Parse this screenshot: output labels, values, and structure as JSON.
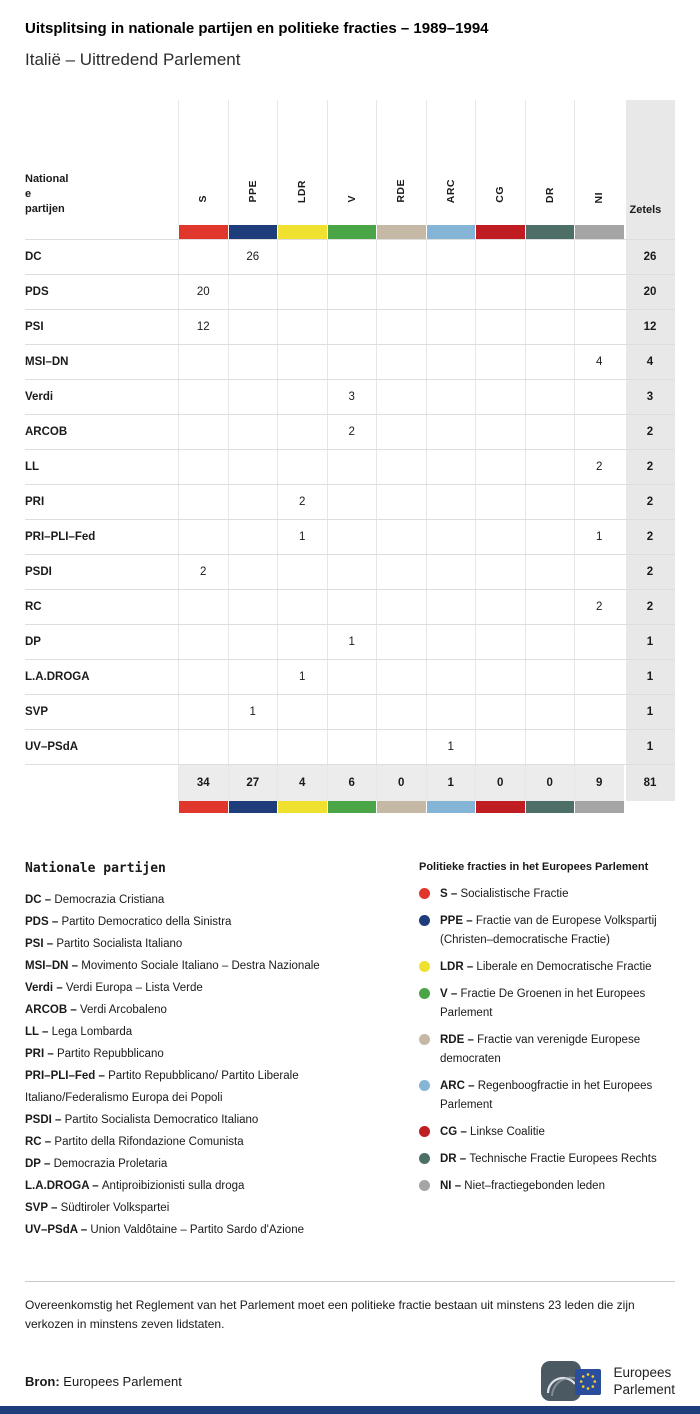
{
  "title": "Uitsplitsing in nationale partijen en politieke fracties – 1989–1994",
  "subtitle": "Italië – Uittredend Parlement",
  "table": {
    "corner_lines": [
      "National",
      "e",
      "partijen"
    ],
    "seats_header": "Zetels"
  },
  "chart_data": {
    "type": "table",
    "title": "Uitsplitsing in nationale partijen en politieke fracties – 1989–1994",
    "subtitle": "Italië – Uittredend Parlement",
    "groups": [
      {
        "code": "S",
        "color": "#e0362c"
      },
      {
        "code": "PPE",
        "color": "#1f3d7a"
      },
      {
        "code": "LDR",
        "color": "#f0e130"
      },
      {
        "code": "V",
        "color": "#4aa546"
      },
      {
        "code": "RDE",
        "color": "#c5b8a4"
      },
      {
        "code": "ARC",
        "color": "#84b5d6"
      },
      {
        "code": "CG",
        "color": "#c01d23"
      },
      {
        "code": "DR",
        "color": "#4e6f68"
      },
      {
        "code": "NI",
        "color": "#a5a5a5"
      }
    ],
    "rows": [
      {
        "party": "DC",
        "values": [
          0,
          26,
          0,
          0,
          0,
          0,
          0,
          0,
          0
        ],
        "total": 26
      },
      {
        "party": "PDS",
        "values": [
          20,
          0,
          0,
          0,
          0,
          0,
          0,
          0,
          0
        ],
        "total": 20
      },
      {
        "party": "PSI",
        "values": [
          12,
          0,
          0,
          0,
          0,
          0,
          0,
          0,
          0
        ],
        "total": 12
      },
      {
        "party": "MSI–DN",
        "values": [
          0,
          0,
          0,
          0,
          0,
          0,
          0,
          0,
          4
        ],
        "total": 4
      },
      {
        "party": "Verdi",
        "values": [
          0,
          0,
          0,
          3,
          0,
          0,
          0,
          0,
          0
        ],
        "total": 3
      },
      {
        "party": "ARCOB",
        "values": [
          0,
          0,
          0,
          2,
          0,
          0,
          0,
          0,
          0
        ],
        "total": 2
      },
      {
        "party": "LL",
        "values": [
          0,
          0,
          0,
          0,
          0,
          0,
          0,
          0,
          2
        ],
        "total": 2
      },
      {
        "party": "PRI",
        "values": [
          0,
          0,
          2,
          0,
          0,
          0,
          0,
          0,
          0
        ],
        "total": 2
      },
      {
        "party": "PRI–PLI–Fed",
        "values": [
          0,
          0,
          1,
          0,
          0,
          0,
          0,
          0,
          1
        ],
        "total": 2
      },
      {
        "party": "PSDI",
        "values": [
          2,
          0,
          0,
          0,
          0,
          0,
          0,
          0,
          0
        ],
        "total": 2
      },
      {
        "party": "RC",
        "values": [
          0,
          0,
          0,
          0,
          0,
          0,
          0,
          0,
          2
        ],
        "total": 2
      },
      {
        "party": "DP",
        "values": [
          0,
          0,
          0,
          1,
          0,
          0,
          0,
          0,
          0
        ],
        "total": 1
      },
      {
        "party": "L.A.DROGA",
        "values": [
          0,
          0,
          1,
          0,
          0,
          0,
          0,
          0,
          0
        ],
        "total": 1
      },
      {
        "party": "SVP",
        "values": [
          0,
          1,
          0,
          0,
          0,
          0,
          0,
          0,
          0
        ],
        "total": 1
      },
      {
        "party": "UV–PSdA",
        "values": [
          0,
          0,
          0,
          0,
          0,
          1,
          0,
          0,
          0
        ],
        "total": 1
      }
    ],
    "totals": {
      "values": [
        34,
        27,
        4,
        6,
        0,
        1,
        0,
        0,
        9
      ],
      "total": 81
    }
  },
  "legend_parties": {
    "title": "Nationale partijen",
    "items": [
      {
        "code": "DC",
        "name": "Democrazia Cristiana"
      },
      {
        "code": "PDS",
        "name": "Partito Democratico della Sinistra"
      },
      {
        "code": "PSI",
        "name": "Partito Socialista Italiano"
      },
      {
        "code": "MSI–DN",
        "name": "Movimento Sociale Italiano – Destra Nazionale"
      },
      {
        "code": "Verdi",
        "name": "Verdi Europa – Lista Verde"
      },
      {
        "code": "ARCOB",
        "name": "Verdi Arcobaleno"
      },
      {
        "code": "LL",
        "name": "Lega Lombarda"
      },
      {
        "code": "PRI",
        "name": "Partito Repubblicano"
      },
      {
        "code": "PRI–PLI–Fed",
        "name": "Partito Repubblicano/ Partito Liberale Italiano/Federalismo Europa dei Popoli"
      },
      {
        "code": "PSDI",
        "name": "Partito Socialista Democratico Italiano"
      },
      {
        "code": "RC",
        "name": "Partito della Rifondazione Comunista"
      },
      {
        "code": "DP",
        "name": "Democrazia Proletaria"
      },
      {
        "code": "L.A.DROGA",
        "name": "Antiproibizionisti sulla droga"
      },
      {
        "code": "SVP",
        "name": "Südtiroler Volkspartei"
      },
      {
        "code": "UV–PSdA",
        "name": "Union Valdôtaine – Partito Sardo d'Azione"
      }
    ]
  },
  "legend_groups": {
    "title": "Politieke fracties in het Europees Parlement",
    "items": [
      {
        "code": "S",
        "color": "#e0362c",
        "name": "Socialistische Fractie"
      },
      {
        "code": "PPE",
        "color": "#1f3d7a",
        "name": "Fractie van de Europese Volkspartij (Christen–democratische Fractie)"
      },
      {
        "code": "LDR",
        "color": "#f0e130",
        "name": "Liberale en Democratische Fractie"
      },
      {
        "code": "V",
        "color": "#4aa546",
        "name": "Fractie De Groenen in het Europees Parlement"
      },
      {
        "code": "RDE",
        "color": "#c5b8a4",
        "name": "Fractie van verenigde Europese democraten"
      },
      {
        "code": "ARC",
        "color": "#84b5d6",
        "name": "Regenboogfractie in het Europees Parlement"
      },
      {
        "code": "CG",
        "color": "#c01d23",
        "name": "Linkse Coalitie"
      },
      {
        "code": "DR",
        "color": "#4e6f68",
        "name": "Technische Fractie Europees Rechts"
      },
      {
        "code": "NI",
        "color": "#a5a5a5",
        "name": "Niet–fractiegebonden leden"
      }
    ]
  },
  "footnote": "Overeenkomstig het Reglement van het Parlement moet een politieke fractie bestaan uit minstens 23 leden die zijn verkozen in minstens zeven lidstaten.",
  "source": {
    "label": "Bron:",
    "name": "Europees Parlement"
  },
  "logo": {
    "line1": "Europees",
    "line2": "Parlement"
  }
}
